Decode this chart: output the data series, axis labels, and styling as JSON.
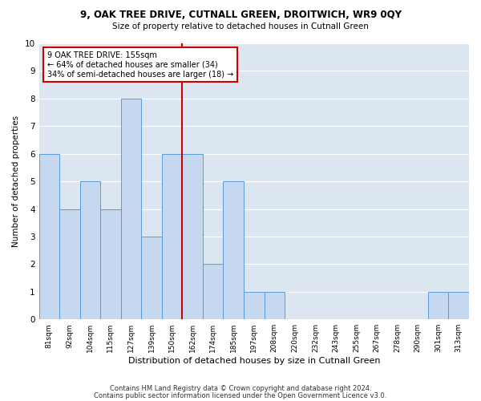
{
  "title1": "9, OAK TREE DRIVE, CUTNALL GREEN, DROITWICH, WR9 0QY",
  "title2": "Size of property relative to detached houses in Cutnall Green",
  "xlabel": "Distribution of detached houses by size in Cutnall Green",
  "ylabel": "Number of detached properties",
  "footnote1": "Contains HM Land Registry data © Crown copyright and database right 2024.",
  "footnote2": "Contains public sector information licensed under the Open Government Licence v3.0.",
  "categories": [
    "81sqm",
    "92sqm",
    "104sqm",
    "115sqm",
    "127sqm",
    "139sqm",
    "150sqm",
    "162sqm",
    "174sqm",
    "185sqm",
    "197sqm",
    "208sqm",
    "220sqm",
    "232sqm",
    "243sqm",
    "255sqm",
    "267sqm",
    "278sqm",
    "290sqm",
    "301sqm",
    "313sqm"
  ],
  "values": [
    6,
    4,
    5,
    4,
    8,
    3,
    6,
    6,
    2,
    5,
    1,
    1,
    0,
    0,
    0,
    0,
    0,
    0,
    0,
    1,
    1
  ],
  "bar_color": "#c5d8f0",
  "bar_edge_color": "#5b9bd5",
  "grid_color": "#ffffff",
  "bg_color": "#dce6f1",
  "annotation_line1": "9 OAK TREE DRIVE: 155sqm",
  "annotation_line2": "← 64% of detached houses are smaller (34)",
  "annotation_line3": "34% of semi-detached houses are larger (18) →",
  "vline_x_index": 6.5,
  "vline_color": "#cc0000",
  "annotation_box_color": "#cc0000",
  "ylim": [
    0,
    10
  ],
  "yticks": [
    0,
    1,
    2,
    3,
    4,
    5,
    6,
    7,
    8,
    9,
    10
  ]
}
